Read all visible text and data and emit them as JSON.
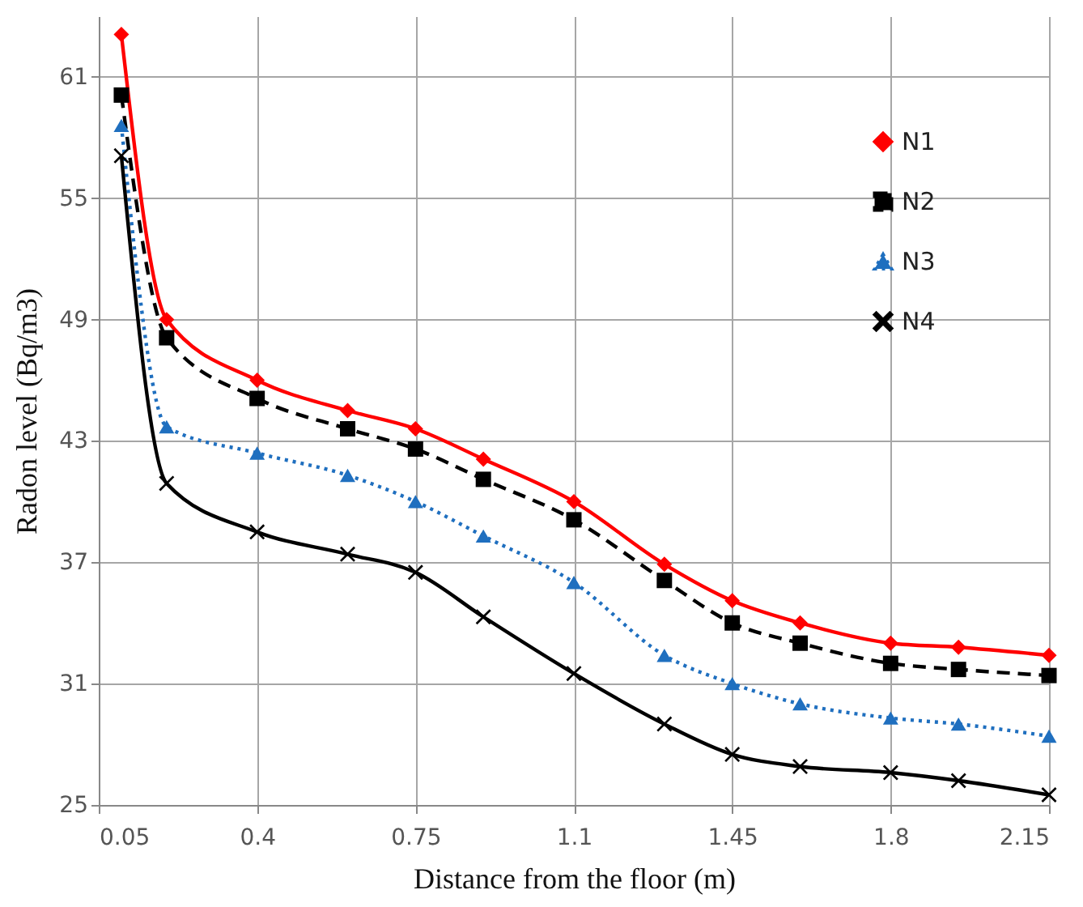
{
  "chart_data": {
    "type": "line",
    "xlabel": "Distance from the floor (m)",
    "ylabel": "Radon level (Bq/m3)",
    "x": [
      0.1,
      0.2,
      0.4,
      0.6,
      0.75,
      0.9,
      1.1,
      1.3,
      1.45,
      1.6,
      1.8,
      1.95,
      2.15
    ],
    "series": [
      {
        "name": "N1",
        "color": "#ff0000",
        "marker": "diamond",
        "line_style": "solid",
        "values": [
          63.1,
          49.0,
          46.0,
          44.5,
          43.6,
          42.1,
          40.0,
          36.9,
          35.1,
          34.0,
          33.0,
          32.8,
          32.4
        ]
      },
      {
        "name": "N2",
        "color": "#000000",
        "marker": "square",
        "line_style": "dashed",
        "values": [
          60.1,
          48.1,
          45.1,
          43.6,
          42.6,
          41.1,
          39.1,
          36.1,
          34.0,
          33.0,
          32.0,
          31.7,
          31.4
        ]
      },
      {
        "name": "N3",
        "color": "#1f6fbf",
        "marker": "triangle",
        "line_style": "dotted",
        "values": [
          58.6,
          43.7,
          42.4,
          41.3,
          40.0,
          38.3,
          36.0,
          32.4,
          31.0,
          30.0,
          29.3,
          29.0,
          28.4
        ]
      },
      {
        "name": "N4",
        "color": "#000000",
        "marker": "cross",
        "line_style": "solid",
        "values": [
          57.1,
          40.9,
          38.5,
          37.4,
          36.5,
          34.3,
          31.5,
          29.0,
          27.5,
          26.9,
          26.6,
          26.2,
          25.5
        ]
      }
    ],
    "xlim": [
      0.05,
      2.15
    ],
    "xticks": [
      0.05,
      0.4,
      0.75,
      1.1,
      1.45,
      1.8,
      2.15
    ],
    "ylim": [
      25,
      64
    ],
    "yticks": [
      25,
      31,
      37,
      43,
      49,
      55,
      61
    ],
    "grid": true,
    "legend": "top right"
  }
}
